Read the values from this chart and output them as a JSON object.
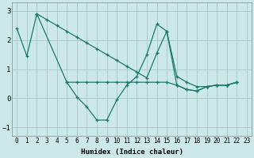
{
  "color": "#1a7a6a",
  "bg_color": "#cce8e8",
  "grid_color": "#aacccc",
  "xlabel": "Humidex (Indice chaleur)",
  "ylim": [
    -1.3,
    3.3
  ],
  "xlim": [
    -0.5,
    23.5
  ],
  "yticks": [
    -1,
    0,
    1,
    2,
    3
  ],
  "xticks": [
    0,
    1,
    2,
    3,
    4,
    5,
    6,
    7,
    8,
    9,
    10,
    11,
    12,
    13,
    14,
    15,
    16,
    17,
    18,
    19,
    20,
    21,
    22,
    23
  ],
  "line_jagged_x": [
    0,
    1,
    2,
    5,
    6,
    7,
    8,
    9,
    10,
    11,
    12,
    13,
    14,
    15,
    16,
    17,
    18,
    19,
    20,
    21,
    22
  ],
  "line_jagged_y": [
    2.4,
    1.45,
    2.9,
    0.55,
    0.05,
    -0.3,
    -0.75,
    -0.75,
    -0.05,
    0.45,
    0.75,
    1.5,
    2.55,
    2.3,
    0.45,
    0.3,
    0.25,
    0.4,
    0.45,
    0.45,
    0.55
  ],
  "line_diag_x": [
    2,
    3,
    4,
    5,
    6,
    7,
    8,
    9,
    10,
    11,
    12,
    13,
    14,
    15,
    16,
    17,
    18,
    19,
    20,
    21,
    22
  ],
  "line_diag_y": [
    2.9,
    2.7,
    2.5,
    2.3,
    2.1,
    1.9,
    1.7,
    1.5,
    1.3,
    1.1,
    0.9,
    0.7,
    1.55,
    2.3,
    0.75,
    0.55,
    0.4,
    0.4,
    0.45,
    0.45,
    0.55
  ],
  "line_flat_x": [
    5,
    6,
    7,
    8,
    9,
    10,
    11,
    12,
    13,
    14,
    15,
    16,
    17,
    18,
    19,
    20,
    21,
    22
  ],
  "line_flat_y": [
    0.55,
    0.55,
    0.55,
    0.55,
    0.55,
    0.55,
    0.55,
    0.55,
    0.55,
    0.55,
    0.55,
    0.45,
    0.3,
    0.25,
    0.4,
    0.45,
    0.45,
    0.55
  ]
}
